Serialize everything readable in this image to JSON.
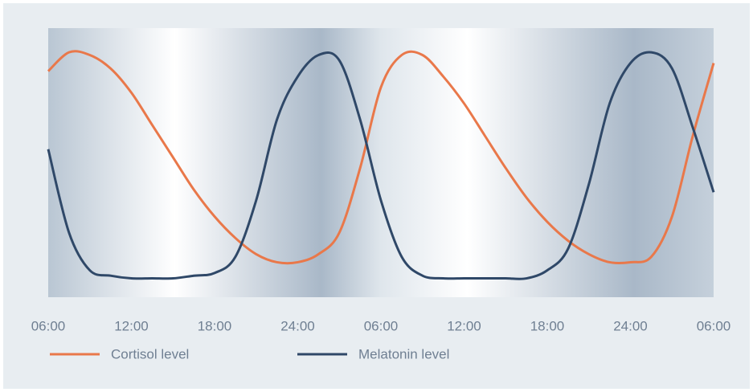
{
  "chart_data": {
    "type": "line",
    "x": [
      0,
      1.5,
      3,
      4.5,
      6,
      7.5,
      9,
      10.5,
      12,
      13.5,
      15,
      16.5,
      18,
      19.5,
      21,
      22.5,
      24,
      25.5,
      27,
      28.5,
      30,
      31.5,
      33,
      34.5,
      36,
      37.5,
      39,
      40.5,
      42,
      43.5,
      45,
      46.5,
      48
    ],
    "series": [
      {
        "name": "Cortisol level",
        "color": "#e9784a",
        "values": [
          84,
          91,
          90,
          85,
          76,
          64,
          52,
          40,
          30,
          22,
          16,
          13,
          13,
          16,
          24,
          48,
          78,
          90,
          90,
          82,
          72,
          60,
          48,
          37,
          28,
          21,
          16,
          13,
          13,
          15,
          30,
          60,
          87
        ]
      },
      {
        "name": "Melatonin level",
        "color": "#2f4868",
        "values": [
          55,
          24,
          10,
          8,
          7,
          7,
          7,
          8,
          9,
          15,
          36,
          66,
          82,
          90,
          88,
          66,
          36,
          15,
          8,
          7,
          7,
          7,
          7,
          7,
          10,
          18,
          42,
          72,
          87,
          91,
          85,
          63,
          39
        ]
      }
    ],
    "xlim": [
      0,
      48
    ],
    "xticks": [
      {
        "value": 0,
        "label": "06:00"
      },
      {
        "value": 6,
        "label": "12:00"
      },
      {
        "value": 12,
        "label": "18:00"
      },
      {
        "value": 18,
        "label": "24:00"
      },
      {
        "value": 24,
        "label": "06:00"
      },
      {
        "value": 30,
        "label": "12:00"
      },
      {
        "value": 36,
        "label": "18:00"
      },
      {
        "value": 42,
        "label": "24:00"
      },
      {
        "value": 48,
        "label": "06:00"
      }
    ],
    "ylim": [
      0,
      100
    ]
  }
}
